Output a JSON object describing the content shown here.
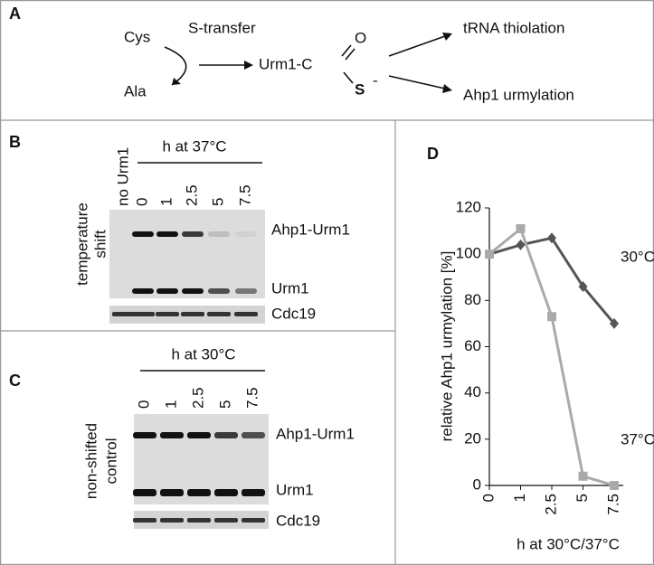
{
  "panel_a": {
    "label": "A",
    "cys": "Cys",
    "transfer": "S-transfer",
    "ala": "Ala",
    "urm1": "Urm1-C",
    "oxygen": "O",
    "sulfur": "S",
    "charge": "-",
    "product_1": "tRNA thiolation",
    "product_2": "Ahp1 urmylation"
  },
  "panel_b": {
    "label": "B",
    "header": "h at 37°C",
    "lanes": [
      "no Urm1",
      "0",
      "1",
      "2.5",
      "5",
      "7.5"
    ],
    "side_label": [
      "temperature",
      "shift"
    ],
    "bands": [
      "Ahp1-Urm1",
      "Urm1",
      "Cdc19"
    ]
  },
  "panel_c": {
    "label": "C",
    "header": "h at 30°C",
    "lanes": [
      "0",
      "1",
      "2.5",
      "5",
      "7.5"
    ],
    "side_label": [
      "non-shifted",
      "control"
    ],
    "bands": [
      "Ahp1-Urm1",
      "Urm1",
      "Cdc19"
    ]
  },
  "panel_d": {
    "label": "D"
  },
  "chart_data": {
    "type": "line",
    "x_label": "h at 30°C/37°C",
    "y_label": "relative Ahp1 urmylation [%]",
    "categories": [
      "0",
      "1",
      "2.5",
      "5",
      "7.5"
    ],
    "series": [
      {
        "name": "30°C",
        "color": "#555555",
        "marker": "diamond",
        "values": [
          100,
          104,
          107,
          86,
          70
        ]
      },
      {
        "name": "37°C",
        "color": "#aaaaaa",
        "marker": "square",
        "values": [
          100,
          111,
          73,
          4,
          0
        ]
      }
    ],
    "ylim": [
      0,
      120
    ],
    "yticks": [
      0,
      20,
      40,
      60,
      80,
      100,
      120
    ]
  }
}
